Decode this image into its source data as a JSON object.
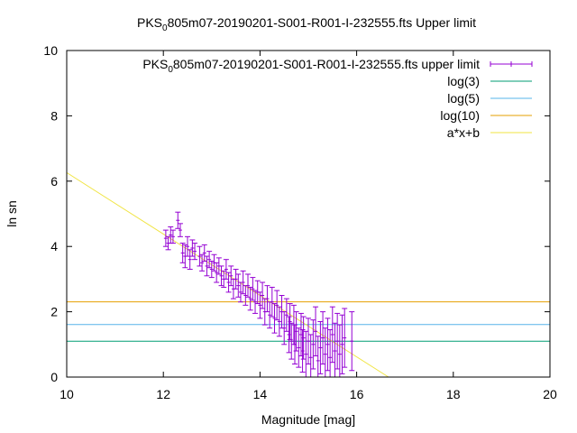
{
  "chart_data": {
    "type": "scatter",
    "title_pre": "PKS",
    "title_sub": "0",
    "title_post": "805m07-20190201-S001-R001-I-232555.fts Upper limit",
    "xlabel": "Magnitude [mag]",
    "ylabel": "ln sn",
    "xlim": [
      10,
      20
    ],
    "ylim": [
      0,
      10
    ],
    "x_ticks": [
      10,
      12,
      14,
      16,
      18,
      20
    ],
    "y_ticks": [
      0,
      2,
      4,
      6,
      8,
      10
    ],
    "grid": false,
    "legend_position": "top-right",
    "legend": [
      {
        "key": "data",
        "pre": "PKS",
        "sub": "0",
        "post": "805m07-20190201-S001-R001-I-232555.fts upper limit",
        "color": "#9400d3",
        "style": "errorbar"
      },
      {
        "key": "log3",
        "label": "log(3)",
        "color": "#009e73",
        "style": "line"
      },
      {
        "key": "log5",
        "label": "log(5)",
        "color": "#56b4e9",
        "style": "line"
      },
      {
        "key": "log10",
        "label": "log(10)",
        "color": "#e69f00",
        "style": "line"
      },
      {
        "key": "fit",
        "label": "a*x+b",
        "color": "#f0e442",
        "style": "line"
      }
    ],
    "hlines": [
      {
        "key": "log3",
        "y": 1.0986,
        "color": "#009e73"
      },
      {
        "key": "log5",
        "y": 1.6094,
        "color": "#56b4e9"
      },
      {
        "key": "log10",
        "y": 2.3026,
        "color": "#e69f00"
      }
    ],
    "fit_line": {
      "slope": -0.94,
      "intercept": 15.66,
      "color": "#f0e442"
    },
    "series": [
      {
        "key": "data",
        "color": "#9400d3",
        "points": [
          [
            12.05,
            4.25,
            0.25
          ],
          [
            12.1,
            4.1,
            0.2
          ],
          [
            12.15,
            4.35,
            0.25
          ],
          [
            12.2,
            4.3,
            0.2
          ],
          [
            12.3,
            4.8,
            0.25
          ],
          [
            12.35,
            4.5,
            0.2
          ],
          [
            12.4,
            3.8,
            0.3
          ],
          [
            12.45,
            3.7,
            0.35
          ],
          [
            12.5,
            4.0,
            0.3
          ],
          [
            12.55,
            3.6,
            0.3
          ],
          [
            12.6,
            3.95,
            0.25
          ],
          [
            12.65,
            3.85,
            0.25
          ],
          [
            12.75,
            3.7,
            0.3
          ],
          [
            12.8,
            3.5,
            0.25
          ],
          [
            12.85,
            3.8,
            0.25
          ],
          [
            12.9,
            3.4,
            0.3
          ],
          [
            12.95,
            3.6,
            0.25
          ],
          [
            13.0,
            3.3,
            0.25
          ],
          [
            13.05,
            3.5,
            0.25
          ],
          [
            13.1,
            3.2,
            0.3
          ],
          [
            13.15,
            3.4,
            0.25
          ],
          [
            13.2,
            3.1,
            0.3
          ],
          [
            13.25,
            3.0,
            0.25
          ],
          [
            13.3,
            3.3,
            0.3
          ],
          [
            13.35,
            2.9,
            0.3
          ],
          [
            13.4,
            3.1,
            0.3
          ],
          [
            13.45,
            2.7,
            0.3
          ],
          [
            13.5,
            3.0,
            0.3
          ],
          [
            13.55,
            2.8,
            0.35
          ],
          [
            13.6,
            2.6,
            0.3
          ],
          [
            13.65,
            2.9,
            0.35
          ],
          [
            13.7,
            2.5,
            0.3
          ],
          [
            13.75,
            2.8,
            0.35
          ],
          [
            13.8,
            2.4,
            0.35
          ],
          [
            13.85,
            2.7,
            0.35
          ],
          [
            13.9,
            2.3,
            0.35
          ],
          [
            13.95,
            2.6,
            0.35
          ],
          [
            14.0,
            2.2,
            0.4
          ],
          [
            14.05,
            2.5,
            0.4
          ],
          [
            14.1,
            2.0,
            0.4
          ],
          [
            14.15,
            2.4,
            0.4
          ],
          [
            14.2,
            1.9,
            0.4
          ],
          [
            14.25,
            2.3,
            0.45
          ],
          [
            14.3,
            1.8,
            0.45
          ],
          [
            14.35,
            2.2,
            0.45
          ],
          [
            14.4,
            1.7,
            0.45
          ],
          [
            14.45,
            2.0,
            0.5
          ],
          [
            14.5,
            1.5,
            0.5
          ],
          [
            14.55,
            1.9,
            0.5
          ],
          [
            14.6,
            1.3,
            0.55
          ],
          [
            14.62,
            1.7,
            0.55
          ],
          [
            14.65,
            1.1,
            0.55
          ],
          [
            14.7,
            1.6,
            0.6
          ],
          [
            14.72,
            1.0,
            0.6
          ],
          [
            14.75,
            1.4,
            0.6
          ],
          [
            14.8,
            0.9,
            0.6
          ],
          [
            14.85,
            1.3,
            0.65
          ],
          [
            14.88,
            0.8,
            0.65
          ],
          [
            14.9,
            1.2,
            0.65
          ],
          [
            14.95,
            0.7,
            0.7
          ],
          [
            15.0,
            1.1,
            0.7
          ],
          [
            15.05,
            0.6,
            0.7
          ],
          [
            15.1,
            1.0,
            0.75
          ],
          [
            15.15,
            1.4,
            0.75
          ],
          [
            15.2,
            0.5,
            0.75
          ],
          [
            15.25,
            0.9,
            0.8
          ],
          [
            15.3,
            1.2,
            0.8
          ],
          [
            15.35,
            0.7,
            0.8
          ],
          [
            15.4,
            1.0,
            0.8
          ],
          [
            15.45,
            0.6,
            0.85
          ],
          [
            15.5,
            1.3,
            0.85
          ],
          [
            15.55,
            0.8,
            0.85
          ],
          [
            15.6,
            1.1,
            0.85
          ],
          [
            15.65,
            0.7,
            0.9
          ],
          [
            15.7,
            1.0,
            0.9
          ],
          [
            15.75,
            1.2,
            0.9
          ],
          [
            15.9,
            1.1,
            0.9
          ]
        ]
      }
    ]
  }
}
